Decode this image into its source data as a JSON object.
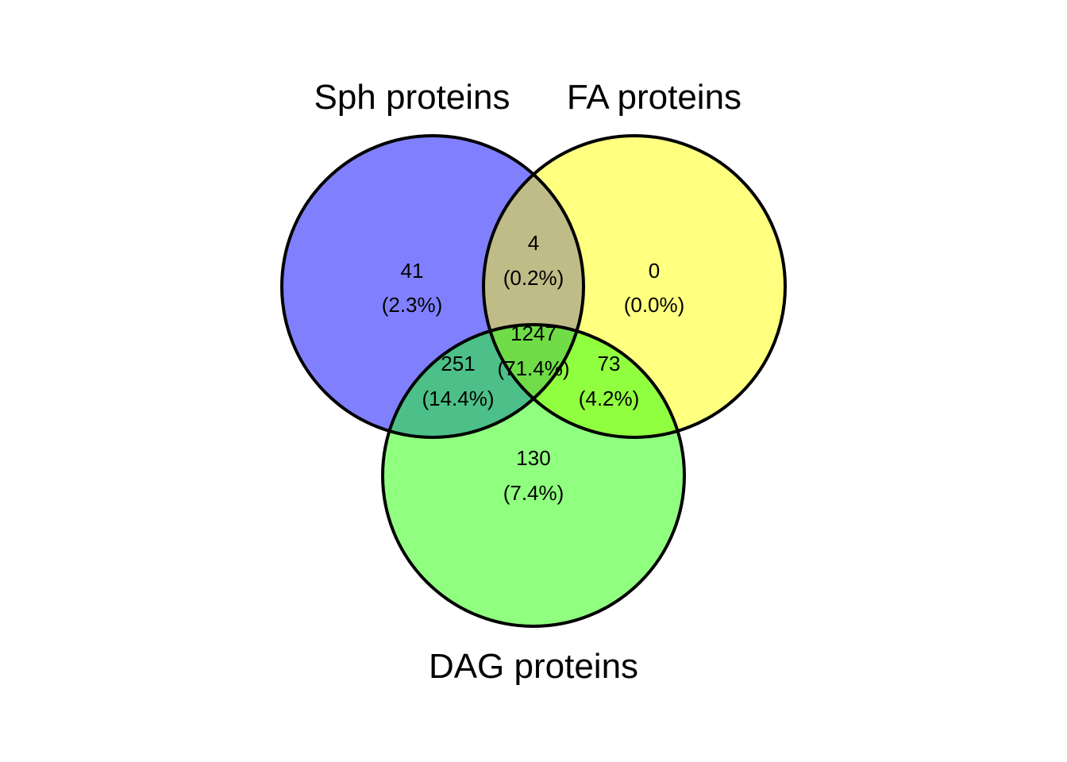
{
  "sets": [
    {
      "id": "sph",
      "label": "Sph proteins",
      "fill": "#8080FF"
    },
    {
      "id": "fa",
      "label": "FA proteins",
      "fill": "#FFFF80"
    },
    {
      "id": "dag",
      "label": "DAG proteins",
      "fill": "#90FF80"
    }
  ],
  "overlap_colors": {
    "sph_fa": "#C0BC88",
    "sph_dag": "#4CC088",
    "fa_dag": "#90FF40",
    "all": "#70DC48"
  },
  "regions": {
    "sph_only": {
      "count": "41",
      "percent": "(2.3%)"
    },
    "fa_only": {
      "count": "0",
      "percent": "(0.0%)"
    },
    "dag_only": {
      "count": "130",
      "percent": "(7.4%)"
    },
    "sph_fa": {
      "count": "4",
      "percent": "(0.2%)"
    },
    "sph_dag": {
      "count": "251",
      "percent": "(14.4%)"
    },
    "fa_dag": {
      "count": "73",
      "percent": "(4.2%)"
    },
    "all": {
      "count": "1247",
      "percent": "(71.4%)"
    }
  }
}
